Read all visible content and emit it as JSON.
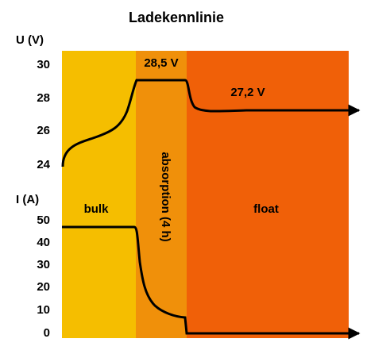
{
  "chart_data": {
    "type": "line",
    "title": "Ladekennlinie",
    "voltage": {
      "ylabel": "U (V)",
      "ticks": [
        "30",
        "28",
        "26",
        "24"
      ],
      "ylim": [
        24,
        30
      ],
      "label_absorption": "28,5 V",
      "label_float": "27,2 V"
    },
    "current": {
      "ylabel": "I (A)",
      "ticks": [
        "50",
        "40",
        "30",
        "20",
        "10",
        "0"
      ],
      "ylim": [
        0,
        50
      ]
    },
    "phases": [
      {
        "name": "bulk",
        "color": "#F5BE00"
      },
      {
        "name": "absorption (4 h)",
        "color": "#F0900A"
      },
      {
        "name": "float",
        "color": "#F06008"
      }
    ]
  }
}
